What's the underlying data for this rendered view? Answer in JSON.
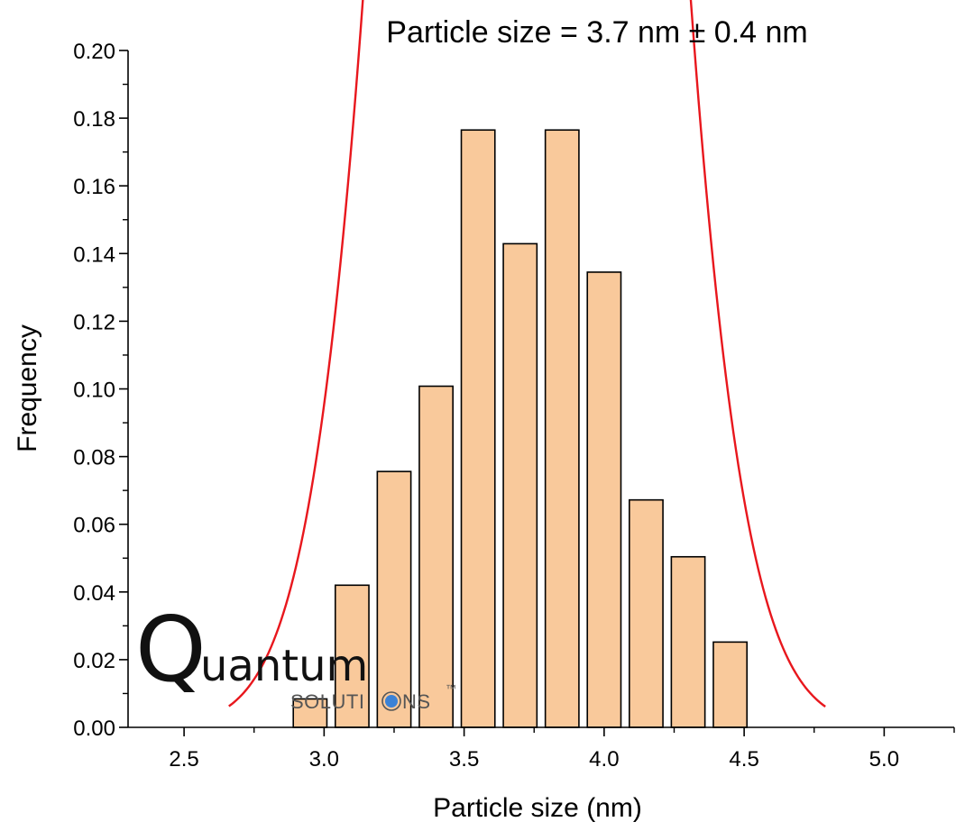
{
  "chart_data": {
    "type": "bar",
    "title": "Particle size = 3.7 nm ± 0.4 nm",
    "xlabel": "Particle size (nm)",
    "ylabel": "Frequency",
    "xlim": [
      2.3,
      5.25
    ],
    "ylim": [
      0,
      0.2
    ],
    "x_ticks": [
      "2.5",
      "3.0",
      "3.5",
      "4.0",
      "4.5",
      "5.0"
    ],
    "y_ticks": [
      "0.00",
      "0.02",
      "0.04",
      "0.06",
      "0.08",
      "0.10",
      "0.12",
      "0.14",
      "0.16",
      "0.18",
      "0.20"
    ],
    "bin_width": 0.15,
    "bar_width": 0.12,
    "series": [
      {
        "x": [
          2.95,
          3.1,
          3.25,
          3.4,
          3.55,
          3.7,
          3.85,
          4.0,
          4.15,
          4.3,
          4.45
        ],
        "values": [
          0.0084,
          0.042,
          0.0756,
          0.1008,
          0.1765,
          0.1429,
          0.1765,
          0.1345,
          0.0672,
          0.0504,
          0.0252
        ]
      }
    ],
    "fit": {
      "type": "gaussian",
      "x_range": [
        2.66,
        4.79
      ]
    },
    "colors": {
      "bar_fill": "#F9C99B",
      "bar_stroke": "#000000",
      "fit_line": "#E8171D"
    },
    "grid": false
  },
  "watermark": {
    "name_initial": "Q",
    "name_rest": "uantum",
    "subtitle_before": "SOLUTI",
    "subtitle_after": "NS",
    "trademark": "™",
    "dot_color": "#3B82D6"
  }
}
